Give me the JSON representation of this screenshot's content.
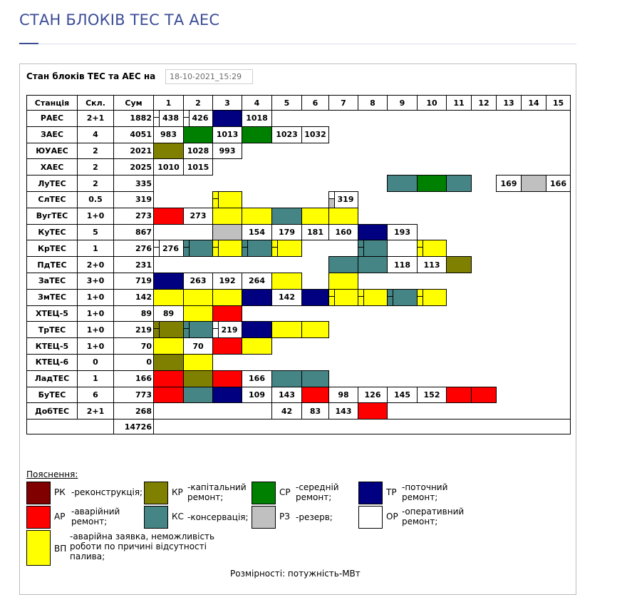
{
  "page_title": "СТАН БЛОКІВ ТЕС ТА АЕС",
  "form": {
    "label": "Стан блоків ТЕС та АЕС на",
    "date_value": "18-10-2021_15:29"
  },
  "colors": {
    "RK": "#800000",
    "KR": "#808000",
    "SR": "#008000",
    "TR": "#000080",
    "AR": "#ff0000",
    "KS": "#458585",
    "RZ": "#c0c0c0",
    "OR": "#ffffff",
    "VP": "#ffff00"
  },
  "table": {
    "headers": [
      "Станція",
      "Скл.",
      "Сум",
      "1",
      "2",
      "3",
      "4",
      "5",
      "6",
      "7",
      "8",
      "9",
      "10",
      "11",
      "12",
      "13",
      "14",
      "15"
    ],
    "rows": [
      {
        "station": "РАЕС",
        "composition": "2+1",
        "sum": "1882",
        "units": [
          {
            "col": 1,
            "state": "OR",
            "value": "438",
            "marker": true
          },
          {
            "col": 2,
            "state": "OR",
            "value": "426",
            "marker": true
          },
          {
            "col": 3,
            "state": "TR"
          },
          {
            "col": 4,
            "state": "OR",
            "value": "1018"
          }
        ]
      },
      {
        "station": "ЗАЕС",
        "composition": "4",
        "sum": "4051",
        "units": [
          {
            "col": 1,
            "state": "OR",
            "value": "983"
          },
          {
            "col": 2,
            "state": "SR"
          },
          {
            "col": 3,
            "state": "OR",
            "value": "1013"
          },
          {
            "col": 4,
            "state": "SR"
          },
          {
            "col": 5,
            "state": "OR",
            "value": "1023"
          },
          {
            "col": 6,
            "state": "OR",
            "value": "1032"
          }
        ]
      },
      {
        "station": "ЮУАЕС",
        "composition": "2",
        "sum": "2021",
        "units": [
          {
            "col": 1,
            "state": "KR"
          },
          {
            "col": 2,
            "state": "OR",
            "value": "1028"
          },
          {
            "col": 3,
            "state": "OR",
            "value": "993"
          }
        ]
      },
      {
        "station": "ХАЕС",
        "composition": "2",
        "sum": "2025",
        "units": [
          {
            "col": 1,
            "state": "OR",
            "value": "1010"
          },
          {
            "col": 2,
            "state": "OR",
            "value": "1015"
          }
        ]
      },
      {
        "station": "ЛуТЕС",
        "composition": "2",
        "sum": "335",
        "units": [
          {
            "col": 9,
            "state": "KS"
          },
          {
            "col": 10,
            "state": "SR"
          },
          {
            "col": 11,
            "state": "KS"
          },
          {
            "col": 13,
            "state": "OR",
            "value": "169"
          },
          {
            "col": 14,
            "state": "RZ"
          },
          {
            "col": 15,
            "state": "OR",
            "value": "166"
          }
        ]
      },
      {
        "station": "СлТЕС",
        "composition": "0.5",
        "sum": "319",
        "units": [
          {
            "col": 3,
            "state": "VP",
            "marker": true
          },
          {
            "col": 7,
            "state": "OR",
            "value": "319",
            "marker": true,
            "sub": "RZ"
          }
        ]
      },
      {
        "station": "ВугТЕС",
        "composition": "1+0",
        "sum": "273",
        "units": [
          {
            "col": 1,
            "state": "AR"
          },
          {
            "col": 2,
            "state": "OR",
            "value": "273"
          },
          {
            "col": 3,
            "state": "VP"
          },
          {
            "col": 4,
            "state": "VP"
          },
          {
            "col": 5,
            "state": "KS"
          },
          {
            "col": 6,
            "state": "VP"
          },
          {
            "col": 7,
            "state": "VP"
          }
        ]
      },
      {
        "station": "КуТЕС",
        "composition": "5",
        "sum": "867",
        "units": [
          {
            "col": 3,
            "state": "RZ"
          },
          {
            "col": 4,
            "state": "OR",
            "value": "154"
          },
          {
            "col": 5,
            "state": "OR",
            "value": "179"
          },
          {
            "col": 6,
            "state": "OR",
            "value": "181"
          },
          {
            "col": 7,
            "state": "OR",
            "value": "160"
          },
          {
            "col": 8,
            "state": "TR"
          },
          {
            "col": 9,
            "state": "OR",
            "value": "193"
          }
        ]
      },
      {
        "station": "КрТЕС",
        "composition": "1",
        "sum": "276",
        "units": [
          {
            "col": 1,
            "state": "OR",
            "value": "276",
            "marker": true
          },
          {
            "col": 2,
            "state": "KS",
            "marker": true
          },
          {
            "col": 3,
            "state": "VP",
            "marker": true
          },
          {
            "col": 4,
            "state": "KS",
            "marker": true
          },
          {
            "col": 5,
            "state": "VP",
            "marker": true
          },
          {
            "col": 8,
            "state": "KS",
            "marker": true
          },
          {
            "col": 10,
            "state": "VP",
            "marker": true
          }
        ]
      },
      {
        "station": "ПдТЕС",
        "composition": "2+0",
        "sum": "231",
        "units": [
          {
            "col": 7,
            "state": "KS"
          },
          {
            "col": 8,
            "state": "KS"
          },
          {
            "col": 9,
            "state": "OR",
            "value": "118"
          },
          {
            "col": 10,
            "state": "OR",
            "value": "113"
          },
          {
            "col": 11,
            "state": "KR"
          }
        ]
      },
      {
        "station": "ЗаТЕС",
        "composition": "3+0",
        "sum": "719",
        "units": [
          {
            "col": 1,
            "state": "TR"
          },
          {
            "col": 2,
            "state": "OR",
            "value": "263"
          },
          {
            "col": 3,
            "state": "OR",
            "value": "192"
          },
          {
            "col": 4,
            "state": "OR",
            "value": "264"
          },
          {
            "col": 5,
            "state": "VP"
          },
          {
            "col": 7,
            "state": "VP"
          }
        ]
      },
      {
        "station": "ЗмТЕС",
        "composition": "1+0",
        "sum": "142",
        "units": [
          {
            "col": 1,
            "state": "VP"
          },
          {
            "col": 2,
            "state": "VP"
          },
          {
            "col": 3,
            "state": "VP"
          },
          {
            "col": 4,
            "state": "TR"
          },
          {
            "col": 5,
            "state": "OR",
            "value": "142"
          },
          {
            "col": 6,
            "state": "TR"
          },
          {
            "col": 7,
            "state": "VP",
            "marker": true
          },
          {
            "col": 8,
            "state": "VP",
            "marker": true
          },
          {
            "col": 9,
            "state": "KS",
            "marker": true
          },
          {
            "col": 10,
            "state": "VP",
            "marker": true
          }
        ]
      },
      {
        "station": "ХТЕЦ-5",
        "composition": "1+0",
        "sum": "89",
        "units": [
          {
            "col": 1,
            "state": "OR",
            "value": "89"
          },
          {
            "col": 2,
            "state": "VP"
          },
          {
            "col": 3,
            "state": "AR"
          }
        ]
      },
      {
        "station": "ТрТЕС",
        "composition": "1+0",
        "sum": "219",
        "units": [
          {
            "col": 1,
            "state": "KR",
            "marker": true
          },
          {
            "col": 2,
            "state": "KS",
            "marker": true
          },
          {
            "col": 3,
            "state": "OR",
            "value": "219",
            "marker": true
          },
          {
            "col": 4,
            "state": "TR"
          },
          {
            "col": 5,
            "state": "VP"
          },
          {
            "col": 6,
            "state": "VP"
          }
        ]
      },
      {
        "station": "КТЕЦ-5",
        "composition": "1+0",
        "sum": "70",
        "units": [
          {
            "col": 1,
            "state": "VP"
          },
          {
            "col": 2,
            "state": "OR",
            "value": "70"
          },
          {
            "col": 3,
            "state": "AR"
          },
          {
            "col": 4,
            "state": "VP"
          }
        ]
      },
      {
        "station": "КТЕЦ-6",
        "composition": "0",
        "sum": "0",
        "units": [
          {
            "col": 1,
            "state": "KR"
          },
          {
            "col": 2,
            "state": "VP"
          }
        ]
      },
      {
        "station": "ЛадТЕС",
        "composition": "1",
        "sum": "166",
        "units": [
          {
            "col": 1,
            "state": "AR"
          },
          {
            "col": 2,
            "state": "KR"
          },
          {
            "col": 3,
            "state": "AR"
          },
          {
            "col": 4,
            "state": "OR",
            "value": "166"
          },
          {
            "col": 5,
            "state": "KS"
          },
          {
            "col": 6,
            "state": "KS"
          }
        ]
      },
      {
        "station": "БуТЕС",
        "composition": "6",
        "sum": "773",
        "units": [
          {
            "col": 1,
            "state": "AR"
          },
          {
            "col": 2,
            "state": "KS"
          },
          {
            "col": 3,
            "state": "TR"
          },
          {
            "col": 4,
            "state": "OR",
            "value": "109"
          },
          {
            "col": 5,
            "state": "OR",
            "value": "143"
          },
          {
            "col": 6,
            "state": "AR"
          },
          {
            "col": 7,
            "state": "OR",
            "value": "98"
          },
          {
            "col": 8,
            "state": "OR",
            "value": "126"
          },
          {
            "col": 9,
            "state": "OR",
            "value": "145"
          },
          {
            "col": 10,
            "state": "OR",
            "value": "152"
          },
          {
            "col": 11,
            "state": "AR"
          },
          {
            "col": 12,
            "state": "AR"
          }
        ]
      },
      {
        "station": "ДобТЕС",
        "composition": "2+1",
        "sum": "268",
        "units": [
          {
            "col": 5,
            "state": "OR",
            "value": "42"
          },
          {
            "col": 6,
            "state": "OR",
            "value": "83"
          },
          {
            "col": 7,
            "state": "OR",
            "value": "143"
          },
          {
            "col": 8,
            "state": "AR"
          }
        ]
      }
    ],
    "total": "14726"
  },
  "legend": {
    "title": "Пояснення:",
    "items": [
      {
        "key": "RK",
        "code": "РК",
        "desc": "-реконструкція;"
      },
      {
        "key": "KR",
        "code": "КР",
        "desc": "-капітальний\nремонт;"
      },
      {
        "key": "SR",
        "code": "СР",
        "desc": "-середній\nремонт;"
      },
      {
        "key": "TR",
        "code": "ТР",
        "desc": "-поточний\nремонт;"
      },
      {
        "key": "AR",
        "code": "АР",
        "desc": "-аварійний\nремонт;"
      },
      {
        "key": "KS",
        "code": "КС",
        "desc": "-консервація;"
      },
      {
        "key": "RZ",
        "code": "РЗ",
        "desc": "-резерв;"
      },
      {
        "key": "OR",
        "code": "ОР",
        "desc": "-оперативний\nремонт;"
      },
      {
        "key": "VP",
        "code": "ВП",
        "desc": "-аварійна заявка, неможливість\nроботи по причині відсутності\nпалива;"
      }
    ]
  },
  "units_note": "Розмірності: потужність-МВт"
}
